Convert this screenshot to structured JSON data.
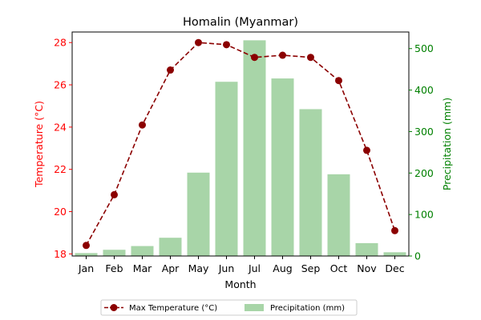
{
  "chart_data": {
    "type": "bar+line",
    "title": "Homalin (Myanmar)",
    "xlabel": "Month",
    "categories": [
      "Jan",
      "Feb",
      "Mar",
      "Apr",
      "May",
      "Jun",
      "Jul",
      "Aug",
      "Sep",
      "Oct",
      "Nov",
      "Dec"
    ],
    "y_left": {
      "label": "Temperature (°C)",
      "lim": [
        17.9,
        28.5
      ],
      "ticks": [
        18,
        20,
        22,
        24,
        26,
        28
      ],
      "color": "#ff0000"
    },
    "y_right": {
      "label": "Precipitation (mm)",
      "lim": [
        0,
        540
      ],
      "ticks": [
        0,
        100,
        200,
        300,
        400,
        500
      ],
      "color": "#008000"
    },
    "series": [
      {
        "name": "Precipitation (mm)",
        "type": "bar",
        "axis": "right",
        "color": "#a8d5a8",
        "values": [
          7,
          15,
          24,
          44,
          201,
          420,
          520,
          428,
          354,
          197,
          31,
          9
        ]
      },
      {
        "name": "Max Temperature (°C)",
        "type": "line",
        "axis": "left",
        "color": "#8b0000",
        "values": [
          18.4,
          20.8,
          24.1,
          26.7,
          28.0,
          27.9,
          27.3,
          27.4,
          27.3,
          26.2,
          22.9,
          19.1
        ]
      }
    ],
    "legend": {
      "position": "bottom-center",
      "entries": [
        "Max Temperature (°C)",
        "Precipitation (mm)"
      ]
    },
    "grid": false
  }
}
